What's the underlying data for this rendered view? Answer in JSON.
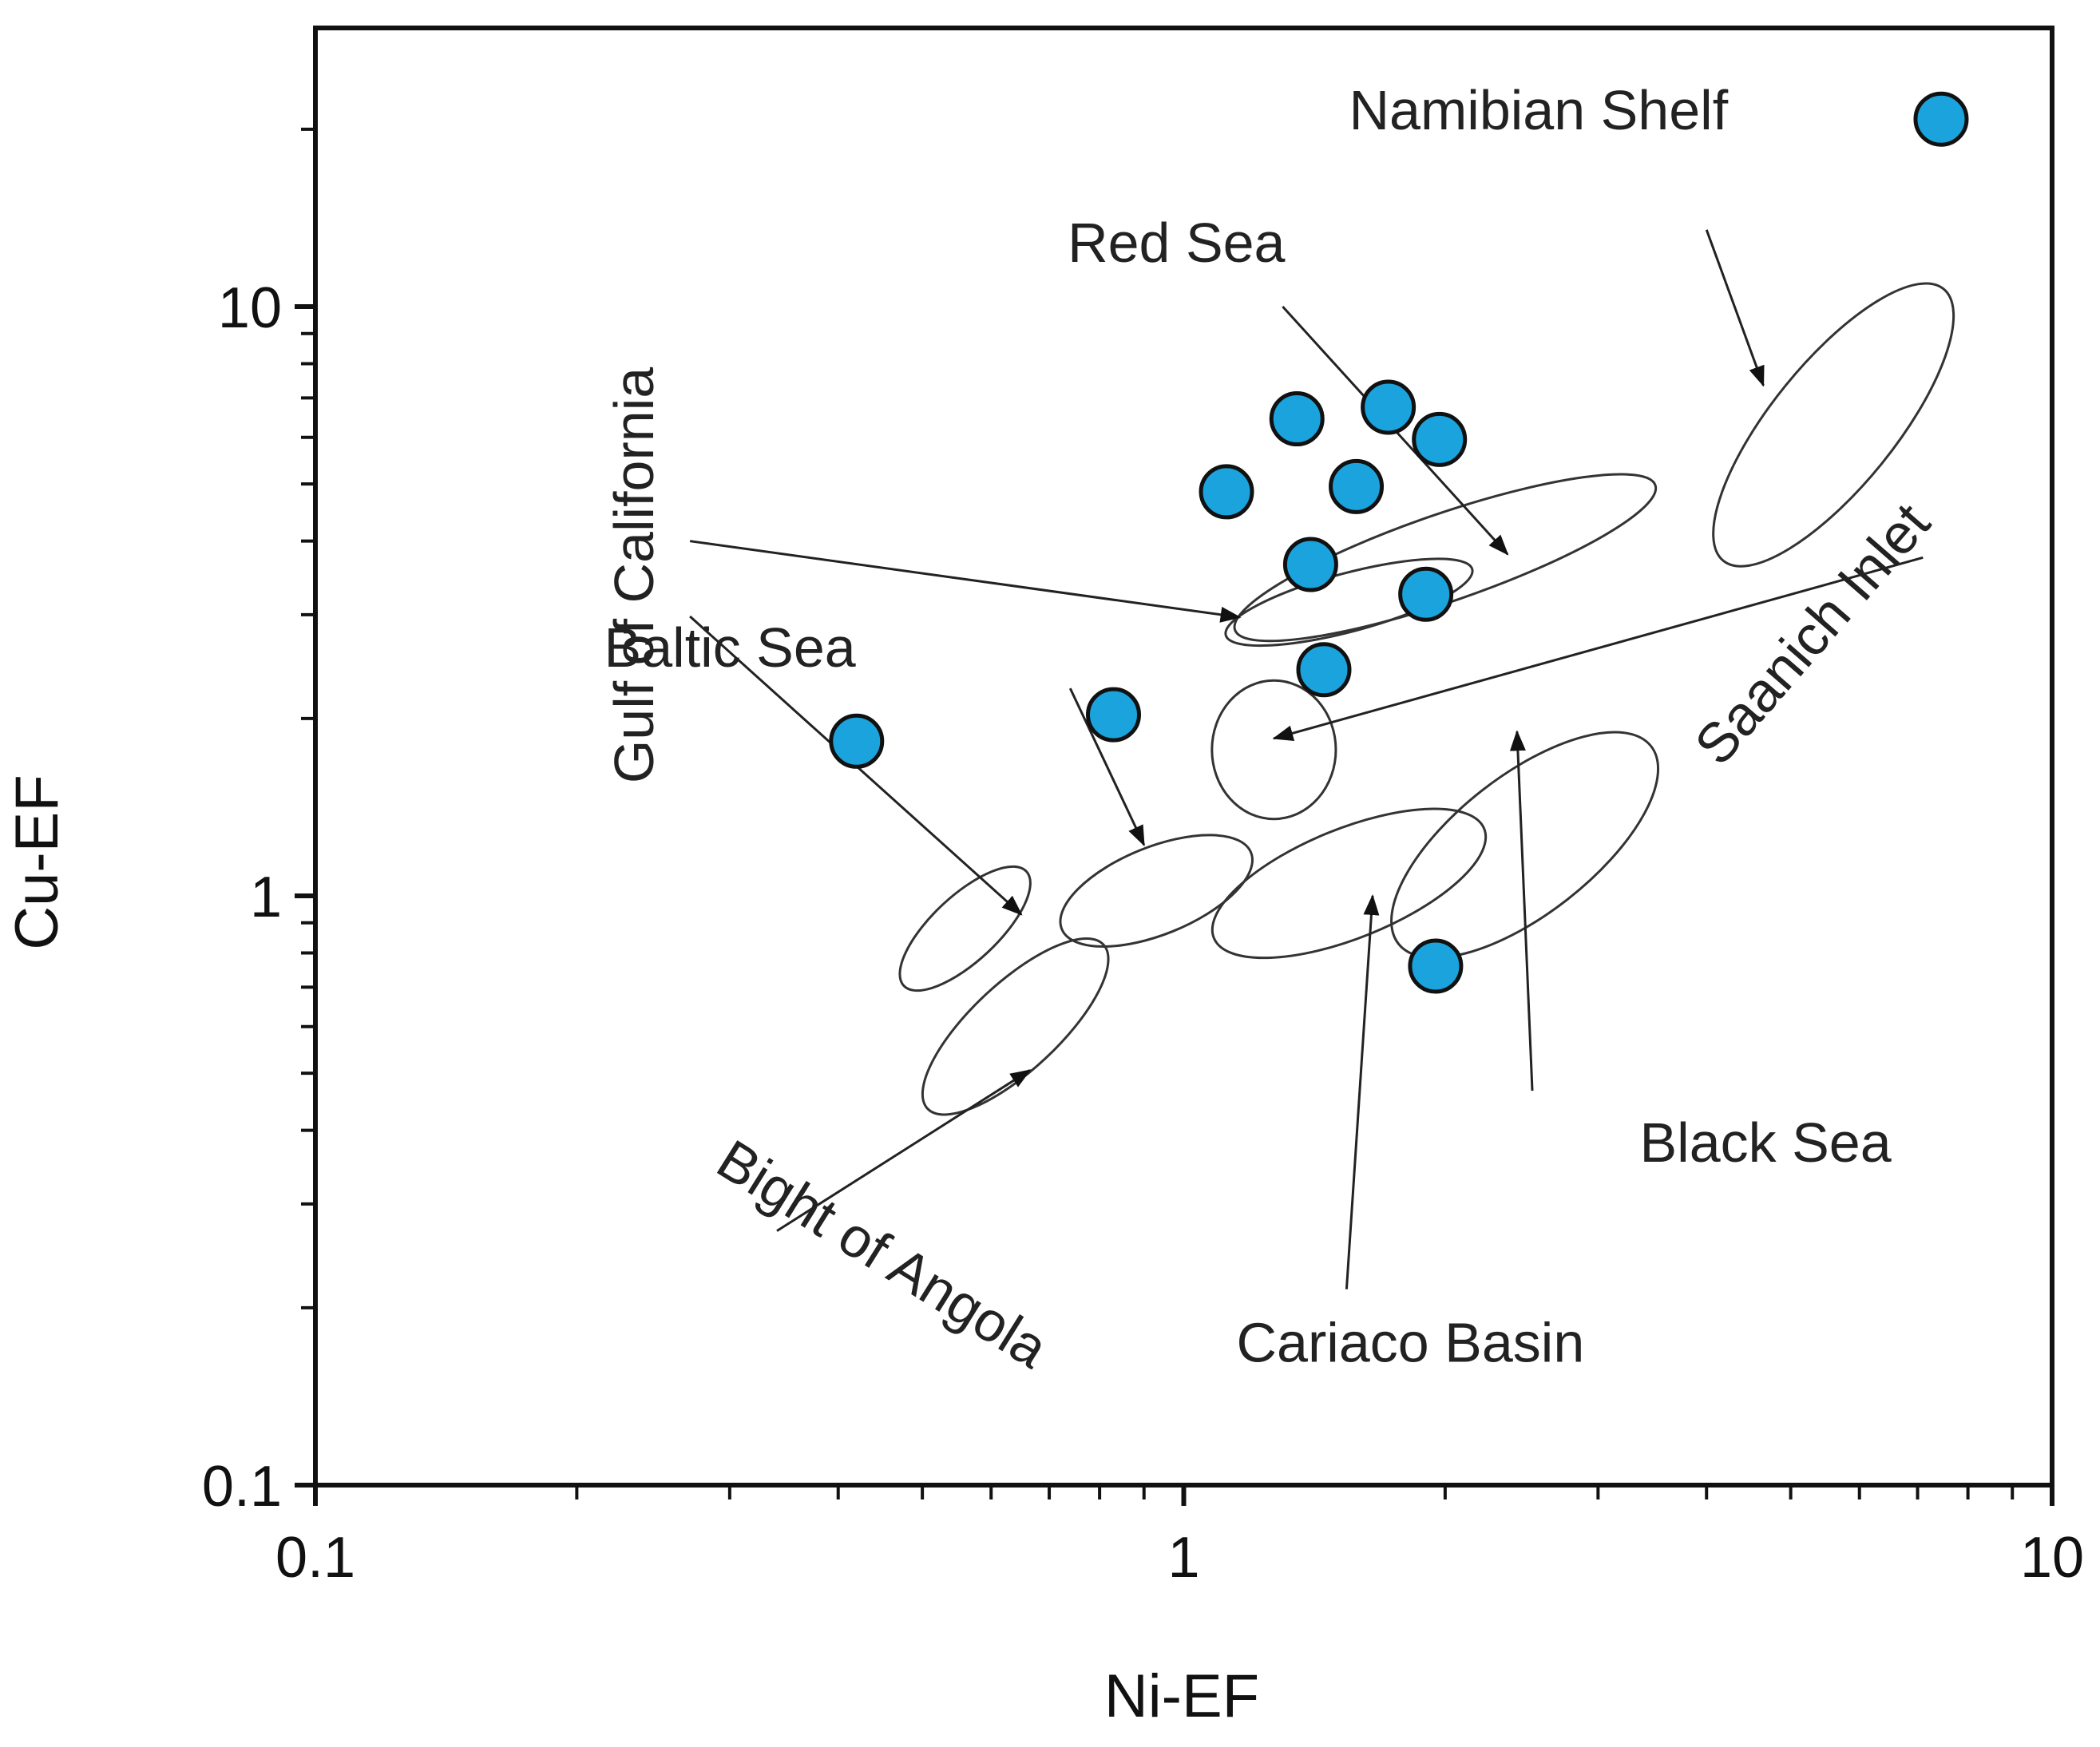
{
  "chart_data": {
    "type": "scatter",
    "xlabel": "Ni-EF",
    "ylabel": "Cu-EF",
    "xscale": "log",
    "yscale": "log",
    "xlim": [
      0.1,
      10
    ],
    "ylim": [
      0.1,
      25
    ],
    "x_tick_labels": [
      {
        "value": 0.1,
        "label": "0.1"
      },
      {
        "value": 1,
        "label": "1"
      },
      {
        "value": 10,
        "label": "10"
      }
    ],
    "y_tick_labels": [
      {
        "value": 0.1,
        "label": "0.1"
      },
      {
        "value": 1,
        "label": "1"
      },
      {
        "value": 10,
        "label": "10"
      }
    ],
    "points": [
      {
        "x": 0.42,
        "y": 1.83
      },
      {
        "x": 0.83,
        "y": 2.03
      },
      {
        "x": 1.12,
        "y": 4.85
      },
      {
        "x": 1.35,
        "y": 6.45
      },
      {
        "x": 1.4,
        "y": 3.65
      },
      {
        "x": 1.45,
        "y": 2.42
      },
      {
        "x": 1.58,
        "y": 4.95
      },
      {
        "x": 1.72,
        "y": 6.75
      },
      {
        "x": 1.97,
        "y": 5.95
      },
      {
        "x": 1.9,
        "y": 3.25
      },
      {
        "x": 1.95,
        "y": 0.76
      },
      {
        "x": 7.45,
        "y": 20.8
      }
    ],
    "regions": [
      {
        "name": "Namibian Shelf",
        "cx": 5.6,
        "cy": 6.3,
        "rx": 0.24,
        "ry": 0.085,
        "angle": 51
      },
      {
        "name": "Red Sea",
        "cx": 2.0,
        "cy": 3.75,
        "rx": 0.305,
        "ry": 0.06,
        "angle": 19
      },
      {
        "name": "Gulf of California",
        "cx": 1.55,
        "cy": 3.15,
        "rx": 0.175,
        "ry": 0.04,
        "angle": 15
      },
      {
        "name": "Gulf of California",
        "cx": 0.56,
        "cy": 0.88,
        "rx": 0.115,
        "ry": 0.045,
        "angle": 43
      },
      {
        "name": "Saanich Inlet",
        "cx": 1.27,
        "cy": 1.77,
        "rx": 0.085,
        "ry": 0.095,
        "angle": 0
      },
      {
        "name": "Baltic Sea",
        "cx": 0.93,
        "cy": 1.02,
        "rx": 0.14,
        "ry": 0.06,
        "angle": 22
      },
      {
        "name": "Bight of Angola",
        "cx": 0.64,
        "cy": 0.6,
        "rx": 0.165,
        "ry": 0.06,
        "angle": 43
      },
      {
        "name": "Cariaco Basin",
        "cx": 1.55,
        "cy": 1.05,
        "rx": 0.2,
        "ry": 0.075,
        "angle": 22
      },
      {
        "name": "Black Sea",
        "cx": 2.47,
        "cy": 1.22,
        "rx": 0.22,
        "ry": 0.095,
        "angle": 38
      }
    ],
    "annotations": [
      {
        "text": "Namibian Shelf",
        "x": 1.55,
        "y": 20.0,
        "anchor": "start",
        "rotate": 0,
        "arrows": [
          {
            "from": [
              4.0,
              13.5
            ],
            "to": [
              4.65,
              7.35
            ]
          }
        ]
      },
      {
        "text": "Red Sea",
        "x": 0.735,
        "y": 11.9,
        "anchor": "start",
        "rotate": 0,
        "arrows": [
          {
            "from": [
              1.3,
              10.0
            ],
            "to": [
              2.36,
              3.8
            ]
          }
        ]
      },
      {
        "text": "Gulf of California",
        "x": 0.245,
        "y": 3.5,
        "anchor": "middle",
        "rotate": -90,
        "arrows": [
          {
            "from": [
              0.27,
              4.0
            ],
            "to": [
              1.16,
              2.97
            ]
          },
          {
            "from": [
              0.27,
              2.98
            ],
            "to": [
              0.65,
              0.93
            ]
          }
        ]
      },
      {
        "text": "Baltic Sea",
        "x": 0.215,
        "y": 2.45,
        "anchor": "start",
        "rotate": 0,
        "arrows": [
          {
            "from": [
              0.74,
              2.25
            ],
            "to": [
              0.9,
              1.22
            ]
          }
        ]
      },
      {
        "text": "Saanich Inlet",
        "x": 5.5,
        "y": 2.65,
        "anchor": "middle",
        "rotate": -49,
        "arrows": [
          {
            "from": [
              7.1,
              3.75
            ],
            "to": [
              1.27,
              1.85
            ]
          }
        ]
      },
      {
        "text": "Black Sea",
        "x": 3.35,
        "y": 0.354,
        "anchor": "start",
        "rotate": 0,
        "arrows": [
          {
            "from": [
              2.52,
              0.467
            ],
            "to": [
              2.42,
              1.9
            ]
          }
        ]
      },
      {
        "text": "Cariaco Basin",
        "x": 1.15,
        "y": 0.162,
        "anchor": "start",
        "rotate": 0,
        "arrows": [
          {
            "from": [
              1.54,
              0.215
            ],
            "to": [
              1.65,
              1.0
            ]
          }
        ]
      },
      {
        "text": "Bight of Angola",
        "x": 0.287,
        "y": 0.342,
        "anchor": "start",
        "rotate": 32,
        "arrows": [
          {
            "from": [
              0.34,
              0.27
            ],
            "to": [
              0.665,
              0.506
            ]
          }
        ]
      }
    ]
  }
}
